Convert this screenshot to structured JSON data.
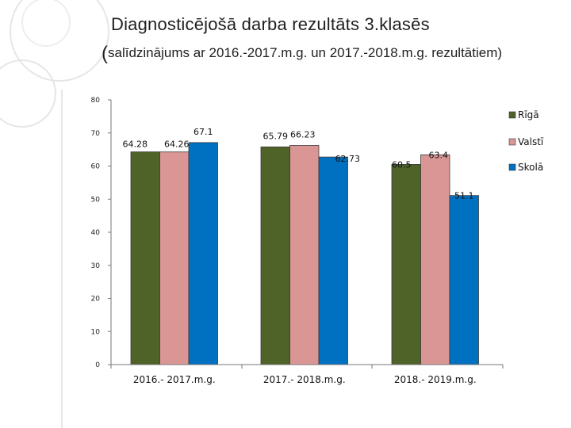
{
  "slide": {
    "title": "Diagnosticējošā darba rezultāts 3.klasēs",
    "subtitle_open": "(",
    "subtitle_text": "salīdzinājums ar 2016.-2017.m.g. un 2017.-2018.m.g. rezultātiem)"
  },
  "chart_data": {
    "type": "bar",
    "title": "",
    "xlabel": "",
    "ylabel": "",
    "ylim": [
      0,
      80
    ],
    "yticks": [
      0,
      10,
      20,
      30,
      40,
      50,
      60,
      70,
      80
    ],
    "grid": false,
    "legend_position": "right",
    "categories": [
      "2016.- 2017.m.g.",
      "2017.- 2018.m.g.",
      "2018.- 2019.m.g."
    ],
    "series": [
      {
        "name": "Rīgā",
        "color": "#4f6228",
        "values": [
          64.28,
          65.79,
          60.5
        ]
      },
      {
        "name": "Valstī",
        "color": "#d99694",
        "values": [
          64.26,
          66.23,
          63.4
        ]
      },
      {
        "name": "Skolā",
        "color": "#0070c0",
        "values": [
          67.1,
          62.73,
          51.1
        ]
      }
    ]
  }
}
